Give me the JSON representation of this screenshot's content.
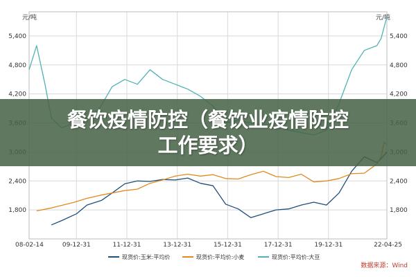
{
  "overlay": {
    "title_line1": "餐饮疫情防控（餐饮业疫情防控",
    "title_line2": "工作要求）"
  },
  "colors": {
    "corn": "#1f4e79",
    "wheat": "#e08a1e",
    "soy": "#4fb3b5",
    "grid": "#d8d8d8",
    "banner": "#466246"
  },
  "chart_data": {
    "type": "line",
    "title": "",
    "y_unit_left": "元/吨",
    "y_unit_right": "元/吨",
    "ylim": [
      1200,
      5900
    ],
    "yticks": [
      1800,
      2400,
      3000,
      3600,
      4200,
      4800,
      5400
    ],
    "ytick_labels": [
      "1,800",
      "2,400",
      "3,000",
      "3,600",
      "4,200",
      "4,800",
      "5,400"
    ],
    "xlim": [
      "2008-02-14",
      "2022-04-25"
    ],
    "xticks": [
      "2008-02-14",
      "2009-12-31",
      "2011-12-31",
      "2013-12-31",
      "2015-12-31",
      "2017-12-31",
      "2019-12-31",
      "2022-04-25"
    ],
    "xtick_labels": [
      "08-02-14",
      "09-12-31",
      "11-12-31",
      "13-12-31",
      "15-12-31",
      "17-12-31",
      "19-12-31",
      "22-04-25"
    ],
    "grid": true,
    "legend_position": "bottom",
    "source": "数据来源：Wind",
    "series": [
      {
        "name": "现货价:玉米:平均价",
        "color_key": "corn",
        "points": [
          [
            "2009-01-01",
            1490
          ],
          [
            "2009-06-01",
            1580
          ],
          [
            "2010-01-01",
            1720
          ],
          [
            "2010-06-01",
            1900
          ],
          [
            "2011-01-01",
            2000
          ],
          [
            "2011-06-01",
            2150
          ],
          [
            "2011-12-01",
            2340
          ],
          [
            "2012-06-01",
            2400
          ],
          [
            "2012-12-01",
            2390
          ],
          [
            "2013-06-01",
            2430
          ],
          [
            "2013-12-01",
            2420
          ],
          [
            "2014-06-01",
            2460
          ],
          [
            "2014-12-01",
            2350
          ],
          [
            "2015-06-01",
            2300
          ],
          [
            "2015-12-01",
            1920
          ],
          [
            "2016-06-01",
            1820
          ],
          [
            "2016-12-01",
            1640
          ],
          [
            "2017-06-01",
            1720
          ],
          [
            "2017-12-01",
            1800
          ],
          [
            "2018-06-01",
            1820
          ],
          [
            "2018-12-01",
            1900
          ],
          [
            "2019-06-01",
            1960
          ],
          [
            "2019-12-01",
            1900
          ],
          [
            "2020-06-01",
            2150
          ],
          [
            "2020-12-01",
            2600
          ],
          [
            "2021-06-01",
            2900
          ],
          [
            "2021-12-01",
            2780
          ],
          [
            "2022-02-01",
            2860
          ],
          [
            "2022-04-25",
            3000
          ]
        ]
      },
      {
        "name": "现货价:平均价:小麦",
        "color_key": "wheat",
        "points": [
          [
            "2008-06-01",
            1780
          ],
          [
            "2009-01-01",
            1840
          ],
          [
            "2009-12-01",
            1960
          ],
          [
            "2010-06-01",
            2040
          ],
          [
            "2010-12-01",
            2100
          ],
          [
            "2011-06-01",
            2150
          ],
          [
            "2011-12-01",
            2200
          ],
          [
            "2012-06-01",
            2230
          ],
          [
            "2012-12-01",
            2350
          ],
          [
            "2013-06-01",
            2420
          ],
          [
            "2013-12-01",
            2500
          ],
          [
            "2014-06-01",
            2540
          ],
          [
            "2014-12-01",
            2500
          ],
          [
            "2015-06-01",
            2530
          ],
          [
            "2015-12-01",
            2450
          ],
          [
            "2016-06-01",
            2440
          ],
          [
            "2016-12-01",
            2530
          ],
          [
            "2017-06-01",
            2600
          ],
          [
            "2017-12-01",
            2490
          ],
          [
            "2018-06-01",
            2470
          ],
          [
            "2018-12-01",
            2540
          ],
          [
            "2019-06-01",
            2380
          ],
          [
            "2019-12-01",
            2400
          ],
          [
            "2020-06-01",
            2450
          ],
          [
            "2020-12-01",
            2550
          ],
          [
            "2021-06-01",
            2560
          ],
          [
            "2021-12-01",
            2750
          ],
          [
            "2022-02-01",
            2900
          ],
          [
            "2022-03-15",
            3200
          ],
          [
            "2022-04-25",
            3150
          ]
        ]
      },
      {
        "name": "现货价:平均价:大豆",
        "color_key": "soy",
        "points": [
          [
            "2008-02-14",
            4700
          ],
          [
            "2008-06-01",
            5200
          ],
          [
            "2008-10-01",
            4400
          ],
          [
            "2009-01-01",
            3700
          ],
          [
            "2009-06-01",
            3500
          ],
          [
            "2009-12-01",
            3600
          ],
          [
            "2010-06-01",
            3700
          ],
          [
            "2010-12-01",
            3900
          ],
          [
            "2011-06-01",
            4350
          ],
          [
            "2011-12-01",
            4500
          ],
          [
            "2012-06-01",
            4400
          ],
          [
            "2012-12-01",
            4700
          ],
          [
            "2013-06-01",
            4500
          ],
          [
            "2013-12-01",
            4400
          ],
          [
            "2014-06-01",
            4300
          ],
          [
            "2014-12-01",
            4150
          ],
          [
            "2015-06-01",
            3950
          ],
          [
            "2015-12-01",
            3600
          ],
          [
            "2016-06-01",
            3650
          ],
          [
            "2016-12-01",
            3600
          ],
          [
            "2017-06-01",
            3550
          ],
          [
            "2017-12-01",
            3600
          ],
          [
            "2018-06-01",
            3450
          ],
          [
            "2018-12-01",
            3400
          ],
          [
            "2019-06-01",
            3350
          ],
          [
            "2019-12-01",
            3450
          ],
          [
            "2020-06-01",
            4000
          ],
          [
            "2020-12-01",
            4700
          ],
          [
            "2021-06-01",
            5100
          ],
          [
            "2021-12-01",
            5200
          ],
          [
            "2022-02-01",
            5350
          ],
          [
            "2022-04-25",
            5800
          ]
        ]
      }
    ]
  }
}
